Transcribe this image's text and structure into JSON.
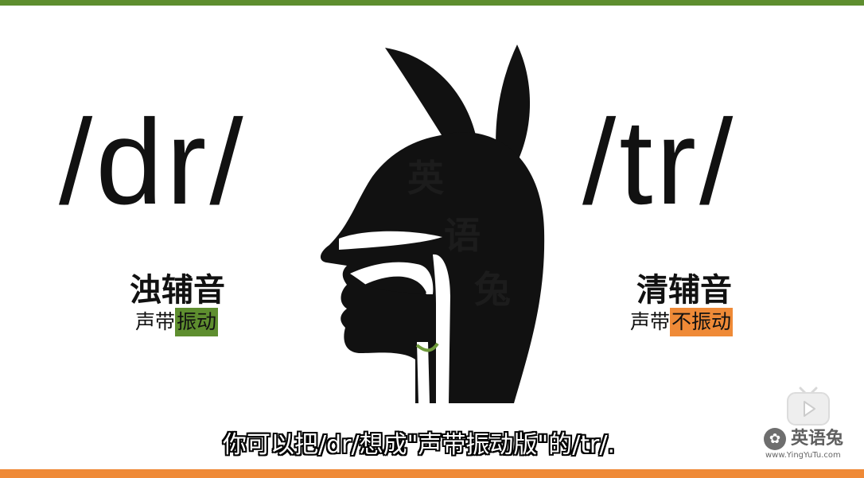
{
  "colors": {
    "voiced_accent": "#5e8e2f",
    "voiceless_accent": "#ef8a37",
    "silhouette": "#111111",
    "vocal_cords": "#6f9a3b"
  },
  "left": {
    "phoneme": "/dr/",
    "type": "浊辅音",
    "note_prefix": "声带",
    "note_highlight": "振动"
  },
  "right": {
    "phoneme": "/tr/",
    "type": "清辅音",
    "note_prefix": "声带",
    "note_highlight": "不振动"
  },
  "illustration": {
    "subject": "head-profile-silhouette",
    "watermark_chars": [
      "英",
      "语",
      "兔"
    ]
  },
  "subtitle": "你可以把/dr/想成\"声带振动版\"的/tr/.",
  "overlay": {
    "play_icon": "play-tv-icon",
    "logo_text": "英语兔",
    "logo_url": "www.YingYuTu.com"
  }
}
